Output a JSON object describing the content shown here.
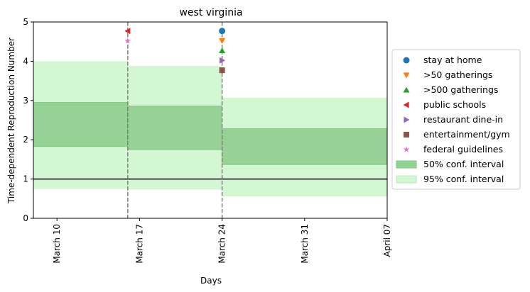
{
  "chart_data": {
    "type": "area",
    "title": "west virginia",
    "xlabel": "Days",
    "ylabel": "Time-dependent Reproduction Number",
    "xlim": [
      "2020-03-08",
      "2020-04-07"
    ],
    "ylim": [
      0,
      5
    ],
    "x_ticks": [
      {
        "date": "2020-03-10",
        "label": "March 10"
      },
      {
        "date": "2020-03-17",
        "label": "March 17"
      },
      {
        "date": "2020-03-24",
        "label": "March 24"
      },
      {
        "date": "2020-03-31",
        "label": "March 31"
      },
      {
        "date": "2020-04-07",
        "label": "April 07"
      }
    ],
    "y_ticks": [
      0,
      1,
      2,
      3,
      4,
      5
    ],
    "reference_line": {
      "y": 1,
      "color": "#000000"
    },
    "intervention_lines": [
      "2020-03-16",
      "2020-03-24"
    ],
    "periods": [
      {
        "start": "2020-03-08",
        "end": "2020-03-16",
        "ci50": [
          1.83,
          2.95
        ],
        "ci95": [
          0.75,
          4.0
        ]
      },
      {
        "start": "2020-03-16",
        "end": "2020-03-24",
        "ci50": [
          1.75,
          2.86
        ],
        "ci95": [
          0.73,
          3.88
        ]
      },
      {
        "start": "2020-03-24",
        "end": "2020-04-07",
        "ci50": [
          1.37,
          2.28
        ],
        "ci95": [
          0.56,
          3.07
        ]
      }
    ],
    "events": [
      {
        "name": "stay at home",
        "date": "2020-03-24",
        "y": 4.77,
        "marker": "circle",
        "color": "#1f77b4"
      },
      {
        "name": ">50 gatherings",
        "date": "2020-03-24",
        "y": 4.52,
        "marker": "triangle-down",
        "color": "#ff7f0e"
      },
      {
        "name": ">500 gatherings",
        "date": "2020-03-24",
        "y": 4.27,
        "marker": "triangle-up",
        "color": "#2ca02c"
      },
      {
        "name": "public schools",
        "date": "2020-03-16",
        "y": 4.77,
        "marker": "triangle-left",
        "color": "#d62728"
      },
      {
        "name": "restaurant dine-in",
        "date": "2020-03-24",
        "y": 4.02,
        "marker": "triangle-right",
        "color": "#9467bd"
      },
      {
        "name": "entertainment/gym",
        "date": "2020-03-24",
        "y": 3.77,
        "marker": "square",
        "color": "#8c564b"
      },
      {
        "name": "federal guidelines",
        "date": "2020-03-16",
        "y": 4.52,
        "marker": "star",
        "color": "#e377c2"
      }
    ],
    "interval_legend": [
      {
        "name": "50% conf. interval",
        "color": "#95d395"
      },
      {
        "name": "95% conf. interval",
        "color": "#d2f5d2"
      }
    ],
    "colors": {
      "ci50": "#96d196",
      "ci50_edge": "#7fc77f",
      "ci95": "#d3f6d3",
      "dashed": "#7f7f7f"
    },
    "legend_position": "center-right"
  }
}
